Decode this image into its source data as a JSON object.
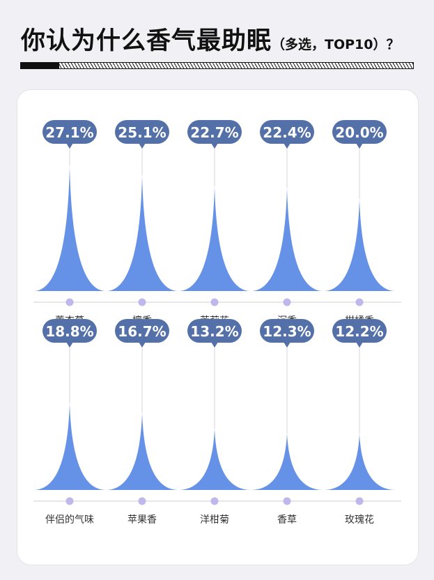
{
  "title": {
    "main": "你认为什么香气最助眠",
    "sub": "（多选，TOP10）？"
  },
  "colors": {
    "spike": "#6592e6",
    "bubble": "#5470a8",
    "dot": "#c0b8ec",
    "axis": "#cfcfd6"
  },
  "chart_data": [
    {
      "type": "area",
      "categories": [
        "薰衣草",
        "檀香",
        "茉莉花",
        "沉香",
        "柑橘香"
      ],
      "values": [
        27.1,
        25.1,
        22.7,
        22.4,
        20.0
      ],
      "labels": [
        "27.1%",
        "25.1%",
        "22.7%",
        "22.4%",
        "20.0%"
      ],
      "ylim": [
        0,
        30
      ],
      "grid": false
    },
    {
      "type": "area",
      "categories": [
        "伴侣的气味",
        "苹果香",
        "洋柑菊",
        "香草",
        "玫瑰花"
      ],
      "values": [
        18.8,
        16.7,
        13.2,
        12.3,
        12.2
      ],
      "labels": [
        "18.8%",
        "16.7%",
        "13.2%",
        "12.3%",
        "12.2%"
      ],
      "ylim": [
        0,
        30
      ],
      "grid": false
    }
  ]
}
